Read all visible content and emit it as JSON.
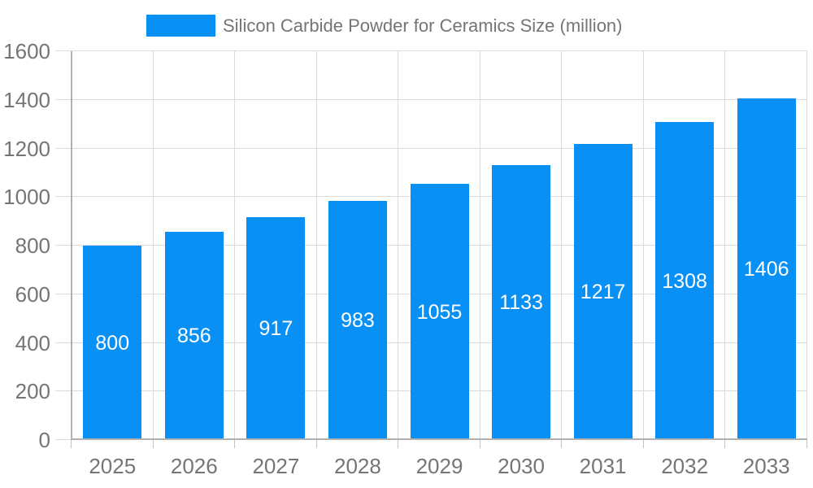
{
  "chart_data": {
    "type": "bar",
    "title": "Silicon Carbide Powder for Ceramics Size (million)",
    "legend": {
      "position": "top",
      "label": "Silicon Carbide Powder for Ceramics Size (million)"
    },
    "categories": [
      "2025",
      "2026",
      "2027",
      "2028",
      "2029",
      "2030",
      "2031",
      "2032",
      "2033"
    ],
    "values": [
      800,
      856,
      917,
      983,
      1055,
      1133,
      1217,
      1308,
      1406
    ],
    "xlabel": "",
    "ylabel": "",
    "ylim": [
      0,
      1600
    ],
    "ytick_step": 200,
    "ytick_labels": [
      "0",
      "200",
      "400",
      "600",
      "800",
      "1000",
      "1200",
      "1400",
      "1600"
    ],
    "grid": true,
    "bar_value_labels_visible": true,
    "colors": {
      "bar": "#0990f5",
      "bar_label_text": "#ffffff",
      "axis_text": "#757575",
      "grid_line": "#dcdcdc",
      "tick_line": "#c4c4c4",
      "axis_line": "#b1b1b1",
      "background": "#ffffff"
    }
  }
}
